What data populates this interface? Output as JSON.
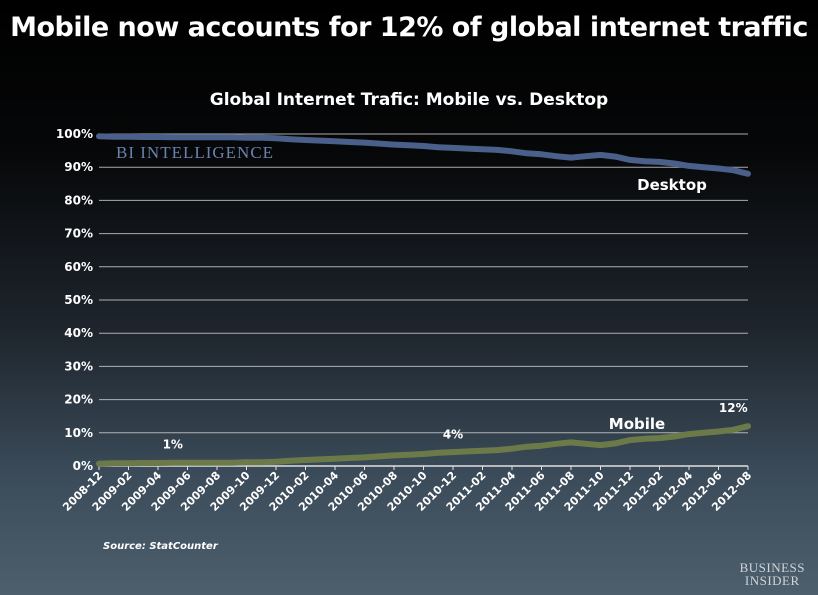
{
  "headline": "Mobile now accounts for 12% of global internet traffic",
  "source": "Source: StatCounter",
  "brand": {
    "line1": "BUSINESS",
    "line2": "INSIDER"
  },
  "colors": {
    "desktop": "#4a5f8a",
    "mobile": "#6c7a4a",
    "grid": "#c8c8c8",
    "watermark": "#6b81ad"
  },
  "chart_data": {
    "type": "line",
    "title": "Global Internet Trafic: Mobile vs. Desktop",
    "watermark": "BI INTELLIGENCE",
    "ylim": [
      0,
      100
    ],
    "y_ticks": [
      "0%",
      "10%",
      "20%",
      "30%",
      "40%",
      "50%",
      "60%",
      "70%",
      "80%",
      "90%",
      "100%"
    ],
    "x": [
      "2008-12",
      "2009-01",
      "2009-02",
      "2009-03",
      "2009-04",
      "2009-05",
      "2009-06",
      "2009-07",
      "2009-08",
      "2009-09",
      "2009-10",
      "2009-11",
      "2009-12",
      "2010-01",
      "2010-02",
      "2010-03",
      "2010-04",
      "2010-05",
      "2010-06",
      "2010-07",
      "2010-08",
      "2010-09",
      "2010-10",
      "2010-11",
      "2010-12",
      "2011-01",
      "2011-02",
      "2011-03",
      "2011-04",
      "2011-05",
      "2011-06",
      "2011-07",
      "2011-08",
      "2011-09",
      "2011-10",
      "2011-11",
      "2011-12",
      "2012-01",
      "2012-02",
      "2012-03",
      "2012-04",
      "2012-05",
      "2012-06",
      "2012-07",
      "2012-08"
    ],
    "x_ticks": [
      "2008-12",
      "2009-02",
      "2009-04",
      "2009-06",
      "2009-08",
      "2009-10",
      "2009-12",
      "2010-02",
      "2010-04",
      "2010-06",
      "2010-08",
      "2010-10",
      "2010-12",
      "2011-02",
      "2011-04",
      "2011-06",
      "2011-08",
      "2011-10",
      "2011-12",
      "2012-02",
      "2012-04",
      "2012-06",
      "2012-08"
    ],
    "series": [
      {
        "name": "Desktop",
        "values": [
          99.3,
          99.2,
          99.2,
          99.1,
          99.1,
          99.0,
          99.0,
          99.0,
          99.0,
          99.0,
          98.9,
          98.9,
          98.7,
          98.4,
          98.2,
          98.0,
          97.8,
          97.6,
          97.4,
          97.1,
          96.8,
          96.6,
          96.4,
          96.0,
          95.8,
          95.6,
          95.4,
          95.2,
          94.8,
          94.2,
          93.9,
          93.3,
          92.9,
          93.3,
          93.7,
          93.2,
          92.2,
          91.8,
          91.6,
          91.1,
          90.4,
          90.0,
          89.6,
          89.1,
          88.0
        ]
      },
      {
        "name": "Mobile",
        "values": [
          0.7,
          0.8,
          0.8,
          0.9,
          0.9,
          1.0,
          1.0,
          1.0,
          1.0,
          1.0,
          1.1,
          1.1,
          1.3,
          1.6,
          1.8,
          2.0,
          2.2,
          2.4,
          2.6,
          2.9,
          3.2,
          3.4,
          3.6,
          4.0,
          4.2,
          4.4,
          4.6,
          4.8,
          5.2,
          5.8,
          6.1,
          6.7,
          7.1,
          6.7,
          6.3,
          6.8,
          7.8,
          8.2,
          8.4,
          8.9,
          9.6,
          10.0,
          10.4,
          10.9,
          12.0
        ]
      }
    ],
    "annotations": [
      {
        "text": "1%",
        "x": "2009-05",
        "y": 1
      },
      {
        "text": "4%",
        "x": "2010-12",
        "y": 4
      },
      {
        "text": "12%",
        "x": "2012-07",
        "y": 12
      }
    ]
  }
}
